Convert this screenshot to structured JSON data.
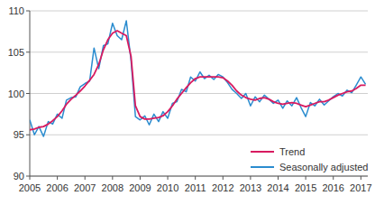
{
  "chart_data": {
    "type": "line",
    "x": [
      2005,
      2005.17,
      2005.33,
      2005.5,
      2005.67,
      2005.83,
      2006,
      2006.17,
      2006.33,
      2006.5,
      2006.67,
      2006.83,
      2007,
      2007.17,
      2007.33,
      2007.5,
      2007.67,
      2007.83,
      2008,
      2008.17,
      2008.33,
      2008.5,
      2008.67,
      2008.83,
      2009,
      2009.17,
      2009.33,
      2009.5,
      2009.67,
      2009.83,
      2010,
      2010.17,
      2010.33,
      2010.5,
      2010.67,
      2010.83,
      2011,
      2011.17,
      2011.33,
      2011.5,
      2011.67,
      2011.83,
      2012,
      2012.17,
      2012.33,
      2012.5,
      2012.67,
      2012.83,
      2013,
      2013.17,
      2013.33,
      2013.5,
      2013.67,
      2013.83,
      2014,
      2014.17,
      2014.33,
      2014.5,
      2014.67,
      2014.83,
      2015,
      2015.17,
      2015.33,
      2015.5,
      2015.67,
      2015.83,
      2016,
      2016.17,
      2016.33,
      2016.5,
      2016.67,
      2016.83,
      2017,
      2017.17
    ],
    "series": [
      {
        "name": "Trend",
        "color": "#d81b60",
        "values": [
          95.6,
          95.7,
          95.9,
          96.0,
          96.3,
          96.7,
          97.2,
          97.9,
          98.7,
          99.3,
          99.8,
          100.3,
          100.9,
          101.6,
          102.3,
          103.5,
          105.3,
          106.5,
          107.3,
          107.6,
          107.3,
          107.0,
          104.5,
          98.5,
          97.2,
          96.9,
          96.9,
          97.0,
          97.1,
          97.3,
          97.8,
          98.5,
          99.3,
          100.0,
          100.7,
          101.3,
          101.8,
          102.0,
          102.0,
          102.0,
          102.0,
          102.0,
          101.9,
          101.5,
          101.0,
          100.3,
          99.8,
          99.5,
          99.3,
          99.2,
          99.4,
          99.5,
          99.3,
          99.0,
          98.8,
          98.7,
          98.8,
          98.9,
          98.8,
          98.6,
          98.4,
          98.6,
          98.8,
          99.0,
          99.0,
          99.2,
          99.5,
          99.8,
          100.0,
          100.2,
          100.3,
          100.6,
          101.0,
          101.0
        ]
      },
      {
        "name": "Seasonally adjusted",
        "color": "#2b8ccf",
        "values": [
          96.8,
          95.0,
          96.0,
          94.8,
          96.6,
          96.3,
          97.5,
          97.0,
          99.2,
          99.5,
          99.6,
          100.8,
          101.2,
          101.5,
          105.5,
          103.0,
          105.8,
          106.0,
          108.5,
          107.0,
          106.5,
          108.8,
          104.0,
          97.2,
          96.8,
          97.3,
          96.2,
          97.5,
          96.6,
          97.8,
          97.0,
          98.8,
          99.0,
          100.5,
          100.2,
          102.0,
          101.5,
          102.6,
          101.8,
          102.2,
          101.7,
          102.3,
          102.0,
          101.3,
          100.5,
          100.0,
          99.4,
          100.0,
          98.5,
          99.6,
          99.0,
          99.8,
          99.3,
          98.8,
          99.2,
          98.2,
          99.1,
          98.5,
          99.5,
          98.3,
          97.2,
          98.9,
          98.5,
          99.3,
          98.6,
          99.1,
          99.6,
          100.0,
          99.7,
          100.4,
          100.1,
          101.0,
          102.0,
          101.1
        ]
      }
    ],
    "xlim": [
      2005,
      2017.25
    ],
    "xticks": [
      2005,
      2006,
      2007,
      2008,
      2009,
      2010,
      2011,
      2012,
      2013,
      2014,
      2015,
      2016,
      2017
    ],
    "ylim": [
      90,
      110
    ],
    "yticks": [
      90,
      95,
      100,
      105,
      110
    ],
    "grid": true,
    "legend": "lower right"
  }
}
